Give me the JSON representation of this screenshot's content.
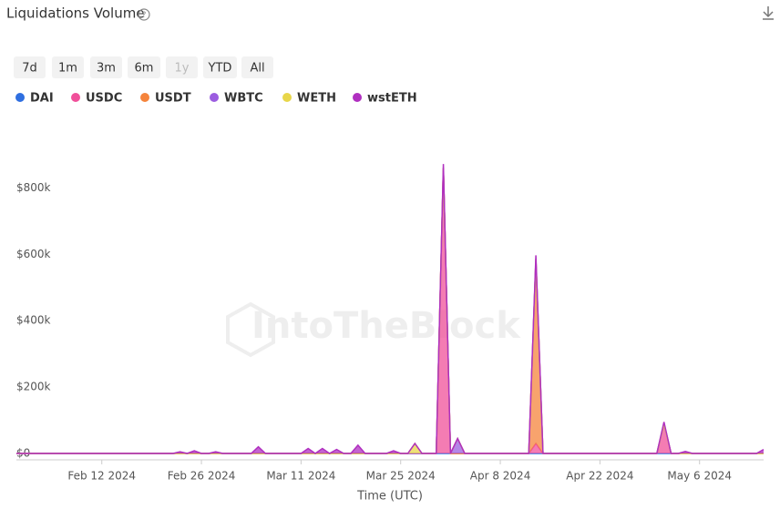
{
  "chart_data": {
    "type": "stacked_area",
    "title": "Liquidations Volume",
    "range_buttons": [
      "7d",
      "1m",
      "3m",
      "6m",
      "1y",
      "YTD",
      "All"
    ],
    "watermark": "IntoTheBlock",
    "x_label": "Time (UTC)",
    "x": [
      "2024-01-31",
      "2024-02-01",
      "2024-02-02",
      "2024-02-03",
      "2024-02-04",
      "2024-02-05",
      "2024-02-06",
      "2024-02-07",
      "2024-02-08",
      "2024-02-09",
      "2024-02-10",
      "2024-02-11",
      "2024-02-12",
      "2024-02-13",
      "2024-02-14",
      "2024-02-15",
      "2024-02-16",
      "2024-02-17",
      "2024-02-18",
      "2024-02-19",
      "2024-02-20",
      "2024-02-21",
      "2024-02-22",
      "2024-02-23",
      "2024-02-24",
      "2024-02-25",
      "2024-02-26",
      "2024-02-27",
      "2024-02-28",
      "2024-02-29",
      "2024-03-01",
      "2024-03-02",
      "2024-03-03",
      "2024-03-04",
      "2024-03-05",
      "2024-03-06",
      "2024-03-07",
      "2024-03-08",
      "2024-03-09",
      "2024-03-10",
      "2024-03-11",
      "2024-03-12",
      "2024-03-13",
      "2024-03-14",
      "2024-03-15",
      "2024-03-16",
      "2024-03-17",
      "2024-03-18",
      "2024-03-19",
      "2024-03-20",
      "2024-03-21",
      "2024-03-22",
      "2024-03-23",
      "2024-03-24",
      "2024-03-25",
      "2024-03-26",
      "2024-03-27",
      "2024-03-28",
      "2024-03-29",
      "2024-03-30",
      "2024-03-31",
      "2024-04-01",
      "2024-04-02",
      "2024-04-03",
      "2024-04-04",
      "2024-04-05",
      "2024-04-06",
      "2024-04-07",
      "2024-04-08",
      "2024-04-09",
      "2024-04-10",
      "2024-04-11",
      "2024-04-12",
      "2024-04-13",
      "2024-04-14",
      "2024-04-15",
      "2024-04-16",
      "2024-04-17",
      "2024-04-18",
      "2024-04-19",
      "2024-04-20",
      "2024-04-21",
      "2024-04-22",
      "2024-04-23",
      "2024-04-24",
      "2024-04-25",
      "2024-04-26",
      "2024-04-27",
      "2024-04-28",
      "2024-04-29",
      "2024-04-30",
      "2024-05-01",
      "2024-05-02",
      "2024-05-03",
      "2024-05-04",
      "2024-05-05",
      "2024-05-06",
      "2024-05-07",
      "2024-05-08",
      "2024-05-09",
      "2024-05-10",
      "2024-05-11",
      "2024-05-12",
      "2024-05-13",
      "2024-05-14",
      "2024-05-15"
    ],
    "xlim": [
      "2024-01-31",
      "2024-05-15"
    ],
    "xticks": [
      {
        "value": "2024-02-12",
        "label": "Feb 12 2024"
      },
      {
        "value": "2024-02-26",
        "label": "Feb 26 2024"
      },
      {
        "value": "2024-03-11",
        "label": "Mar 11 2024"
      },
      {
        "value": "2024-03-25",
        "label": "Mar 25 2024"
      },
      {
        "value": "2024-04-08",
        "label": "Apr 8 2024"
      },
      {
        "value": "2024-04-22",
        "label": "Apr 22 2024"
      },
      {
        "value": "2024-05-06",
        "label": "May 6 2024"
      }
    ],
    "ylim": [
      0,
      900000
    ],
    "yticks": [
      {
        "value": 0,
        "label": "$0"
      },
      {
        "value": 200000,
        "label": "$200k"
      },
      {
        "value": 400000,
        "label": "$400k"
      },
      {
        "value": 600000,
        "label": "$600k"
      },
      {
        "value": 800000,
        "label": "$800k"
      }
    ],
    "grid": false,
    "series": [
      {
        "name": "DAI",
        "color": "#2f6fe0",
        "values": [
          0,
          0,
          0,
          0,
          0,
          0,
          0,
          0,
          0,
          0,
          0,
          0,
          0,
          0,
          0,
          0,
          0,
          0,
          0,
          0,
          0,
          0,
          0,
          0,
          0,
          0,
          0,
          0,
          0,
          0,
          0,
          0,
          0,
          0,
          0,
          0,
          0,
          0,
          0,
          0,
          0,
          0,
          0,
          0,
          0,
          0,
          0,
          0,
          0,
          0,
          0,
          0,
          0,
          0,
          0,
          0,
          0,
          0,
          0,
          0,
          0,
          0,
          0,
          0,
          0,
          0,
          0,
          0,
          0,
          0,
          0,
          0,
          0,
          0,
          0,
          0,
          0,
          0,
          0,
          0,
          0,
          0,
          0,
          0,
          0,
          0,
          0,
          0,
          0,
          0,
          0,
          0,
          0,
          0,
          0,
          0,
          0,
          0,
          0,
          0,
          0,
          0,
          0,
          0,
          0,
          0
        ]
      },
      {
        "name": "USDC",
        "color": "#f0509a",
        "values": [
          0,
          0,
          0,
          0,
          0,
          0,
          0,
          0,
          0,
          0,
          0,
          0,
          0,
          0,
          0,
          0,
          0,
          0,
          0,
          0,
          0,
          0,
          0,
          0,
          0,
          0,
          0,
          0,
          0,
          0,
          0,
          0,
          0,
          0,
          0,
          0,
          0,
          0,
          0,
          0,
          0,
          0,
          0,
          0,
          0,
          0,
          0,
          0,
          0,
          0,
          0,
          0,
          0,
          0,
          0,
          0,
          0,
          0,
          0,
          0,
          860000,
          0,
          0,
          0,
          0,
          0,
          0,
          0,
          0,
          0,
          0,
          0,
          0,
          30000,
          0,
          0,
          0,
          0,
          0,
          0,
          0,
          0,
          0,
          0,
          0,
          0,
          0,
          0,
          0,
          0,
          0,
          90000,
          0,
          0,
          0,
          0,
          0,
          0,
          0,
          0,
          0,
          0,
          0,
          0,
          0,
          0
        ]
      },
      {
        "name": "USDT",
        "color": "#f5843c",
        "values": [
          0,
          0,
          0,
          0,
          0,
          0,
          0,
          0,
          0,
          0,
          0,
          0,
          0,
          0,
          0,
          0,
          0,
          0,
          0,
          0,
          0,
          0,
          0,
          0,
          0,
          0,
          0,
          0,
          0,
          0,
          0,
          0,
          0,
          0,
          0,
          0,
          0,
          0,
          0,
          0,
          0,
          0,
          0,
          0,
          0,
          0,
          0,
          0,
          0,
          0,
          0,
          0,
          0,
          0,
          0,
          0,
          0,
          0,
          0,
          0,
          0,
          0,
          0,
          0,
          0,
          0,
          0,
          0,
          0,
          0,
          0,
          0,
          0,
          555000,
          0,
          0,
          0,
          0,
          0,
          0,
          0,
          0,
          0,
          0,
          0,
          0,
          0,
          0,
          0,
          0,
          0,
          0,
          0,
          0,
          0,
          0,
          0,
          0,
          0,
          0,
          0,
          0,
          0,
          0,
          0,
          0
        ]
      },
      {
        "name": "WBTC",
        "color": "#9b5de0",
        "values": [
          0,
          0,
          0,
          0,
          0,
          0,
          0,
          0,
          0,
          0,
          0,
          0,
          0,
          0,
          0,
          0,
          0,
          0,
          0,
          0,
          0,
          0,
          0,
          0,
          0,
          0,
          0,
          0,
          0,
          0,
          0,
          0,
          0,
          0,
          0,
          0,
          0,
          0,
          0,
          0,
          0,
          0,
          0,
          0,
          0,
          0,
          0,
          0,
          0,
          0,
          0,
          0,
          0,
          0,
          0,
          0,
          0,
          0,
          0,
          0,
          0,
          0,
          45000,
          0,
          0,
          0,
          0,
          0,
          0,
          0,
          0,
          0,
          0,
          0,
          0,
          0,
          0,
          0,
          0,
          0,
          0,
          0,
          0,
          0,
          0,
          0,
          0,
          0,
          0,
          0,
          0,
          0,
          0,
          0,
          0,
          0,
          0,
          0,
          0,
          0,
          0,
          0,
          0,
          0,
          0,
          0
        ]
      },
      {
        "name": "WETH",
        "color": "#e8d64a",
        "values": [
          0,
          0,
          0,
          0,
          0,
          0,
          0,
          0,
          0,
          0,
          0,
          0,
          0,
          0,
          0,
          0,
          0,
          0,
          0,
          0,
          0,
          0,
          0,
          0,
          0,
          0,
          0,
          0,
          0,
          0,
          0,
          0,
          0,
          0,
          0,
          0,
          0,
          0,
          0,
          0,
          0,
          0,
          0,
          0,
          0,
          0,
          0,
          0,
          0,
          0,
          0,
          0,
          0,
          0,
          0,
          0,
          30000,
          0,
          0,
          0,
          0,
          0,
          0,
          0,
          0,
          0,
          0,
          0,
          0,
          0,
          0,
          0,
          0,
          0,
          0,
          0,
          0,
          0,
          0,
          0,
          0,
          0,
          0,
          0,
          0,
          0,
          0,
          0,
          0,
          0,
          0,
          0,
          0,
          0,
          0,
          0,
          0,
          0,
          0,
          0,
          0,
          0,
          0,
          0,
          0,
          0
        ]
      },
      {
        "name": "wstETH",
        "color": "#b02fc0",
        "values": [
          0,
          0,
          0,
          0,
          0,
          0,
          0,
          0,
          0,
          0,
          0,
          0,
          0,
          0,
          0,
          0,
          0,
          0,
          0,
          0,
          0,
          0,
          0,
          5000,
          0,
          8000,
          0,
          0,
          5000,
          0,
          0,
          0,
          0,
          0,
          20000,
          0,
          0,
          0,
          0,
          0,
          0,
          15000,
          0,
          15000,
          0,
          12000,
          0,
          0,
          25000,
          0,
          0,
          0,
          0,
          8000,
          0,
          0,
          0,
          0,
          0,
          0,
          12000,
          0,
          0,
          0,
          0,
          0,
          0,
          0,
          0,
          0,
          0,
          0,
          0,
          12000,
          0,
          0,
          0,
          0,
          0,
          0,
          0,
          0,
          0,
          0,
          0,
          0,
          0,
          0,
          0,
          0,
          0,
          5000,
          0,
          0,
          6000,
          0,
          0,
          0,
          0,
          0,
          0,
          0,
          0,
          0,
          0,
          12000
        ]
      }
    ]
  }
}
